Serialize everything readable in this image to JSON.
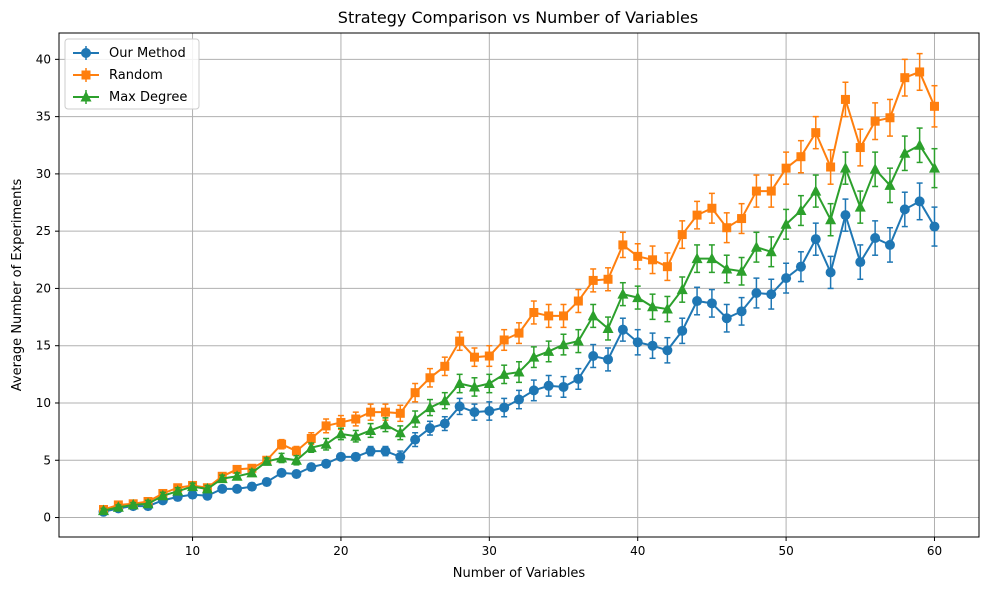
{
  "chart_data": {
    "type": "line",
    "title": "Strategy Comparison vs Number of Variables",
    "xlabel": "Number of Variables",
    "ylabel": "Average Number of Experiments",
    "xlim": [
      1,
      63
    ],
    "ylim": [
      -1.7,
      42.3
    ],
    "xticks": [
      10,
      20,
      30,
      40,
      50,
      60
    ],
    "yticks": [
      0,
      5,
      10,
      15,
      20,
      25,
      30,
      35,
      40
    ],
    "grid": true,
    "legend_position": "top-left",
    "x": [
      4,
      5,
      6,
      7,
      8,
      9,
      10,
      11,
      12,
      13,
      14,
      15,
      16,
      17,
      18,
      19,
      20,
      21,
      22,
      23,
      24,
      25,
      26,
      27,
      28,
      29,
      30,
      31,
      32,
      33,
      34,
      35,
      36,
      37,
      38,
      39,
      40,
      41,
      42,
      43,
      44,
      45,
      46,
      47,
      48,
      49,
      50,
      51,
      52,
      53,
      54,
      55,
      56,
      57,
      58,
      59,
      60
    ],
    "series": [
      {
        "name": "Our Method",
        "color": "#1f77b4",
        "marker": "circle",
        "values": [
          0.5,
          0.8,
          1.0,
          1.0,
          1.5,
          1.8,
          2.0,
          1.9,
          2.5,
          2.5,
          2.7,
          3.1,
          3.9,
          3.8,
          4.4,
          4.7,
          5.3,
          5.3,
          5.8,
          5.8,
          5.3,
          6.8,
          7.8,
          8.2,
          9.7,
          9.2,
          9.3,
          9.6,
          10.3,
          11.1,
          11.5,
          11.4,
          12.1,
          14.1,
          13.8,
          16.4,
          15.3,
          15.0,
          14.6,
          16.3,
          18.9,
          18.7,
          17.4,
          18.0,
          19.6,
          19.5,
          20.9,
          21.9,
          24.3,
          21.4,
          26.4,
          22.3,
          24.4,
          23.8,
          26.9,
          27.6,
          25.4
        ],
        "errors": [
          0.2,
          0.2,
          0.2,
          0.3,
          0.3,
          0.3,
          0.3,
          0.3,
          0.3,
          0.3,
          0.3,
          0.3,
          0.3,
          0.3,
          0.3,
          0.3,
          0.3,
          0.3,
          0.4,
          0.4,
          0.5,
          0.6,
          0.6,
          0.6,
          0.7,
          0.7,
          0.8,
          0.8,
          0.8,
          0.9,
          0.9,
          0.9,
          0.9,
          1.0,
          1.0,
          1.0,
          1.1,
          1.1,
          1.1,
          1.1,
          1.2,
          1.2,
          1.2,
          1.2,
          1.3,
          1.3,
          1.3,
          1.3,
          1.4,
          1.4,
          1.4,
          1.5,
          1.5,
          1.5,
          1.5,
          1.6,
          1.7
        ]
      },
      {
        "name": "Random",
        "color": "#ff7f0e",
        "marker": "square",
        "values": [
          0.7,
          1.1,
          1.2,
          1.4,
          2.1,
          2.6,
          2.8,
          2.6,
          3.6,
          4.2,
          4.3,
          5.0,
          6.4,
          5.8,
          6.9,
          8.0,
          8.3,
          8.6,
          9.2,
          9.2,
          9.1,
          10.9,
          12.2,
          13.2,
          15.4,
          14.0,
          14.1,
          15.5,
          16.1,
          17.9,
          17.6,
          17.6,
          18.9,
          20.7,
          20.8,
          23.8,
          22.8,
          22.5,
          21.9,
          24.7,
          26.4,
          27.0,
          25.3,
          26.1,
          28.5,
          28.5,
          30.5,
          31.5,
          33.6,
          30.6,
          36.5,
          32.3,
          34.6,
          34.9,
          38.4,
          38.9,
          35.9
        ],
        "errors": [
          0.2,
          0.2,
          0.2,
          0.3,
          0.3,
          0.3,
          0.3,
          0.3,
          0.3,
          0.3,
          0.3,
          0.3,
          0.4,
          0.4,
          0.5,
          0.6,
          0.6,
          0.6,
          0.7,
          0.7,
          0.7,
          0.8,
          0.8,
          0.8,
          0.8,
          0.8,
          0.9,
          0.9,
          0.9,
          1.0,
          1.0,
          1.0,
          1.0,
          1.0,
          1.0,
          1.1,
          1.1,
          1.2,
          1.2,
          1.2,
          1.2,
          1.3,
          1.3,
          1.3,
          1.4,
          1.4,
          1.4,
          1.4,
          1.4,
          1.5,
          1.5,
          1.6,
          1.6,
          1.6,
          1.6,
          1.6,
          1.8
        ]
      },
      {
        "name": "Max Degree",
        "color": "#2ca02c",
        "marker": "triangle",
        "values": [
          0.6,
          0.9,
          1.1,
          1.2,
          1.9,
          2.3,
          2.7,
          2.5,
          3.4,
          3.6,
          3.9,
          4.9,
          5.2,
          5.0,
          6.1,
          6.4,
          7.3,
          7.1,
          7.6,
          8.1,
          7.4,
          8.6,
          9.6,
          10.2,
          11.7,
          11.4,
          11.7,
          12.5,
          12.7,
          14.0,
          14.5,
          15.1,
          15.4,
          17.6,
          16.5,
          19.5,
          19.2,
          18.4,
          18.2,
          19.9,
          22.6,
          22.6,
          21.7,
          21.5,
          23.6,
          23.2,
          25.6,
          26.8,
          28.5,
          26.0,
          30.5,
          27.1,
          30.4,
          29.0,
          31.8,
          32.5,
          30.5
        ],
        "errors": [
          0.2,
          0.2,
          0.2,
          0.3,
          0.3,
          0.3,
          0.3,
          0.3,
          0.3,
          0.3,
          0.3,
          0.3,
          0.4,
          0.4,
          0.4,
          0.5,
          0.5,
          0.5,
          0.6,
          0.6,
          0.6,
          0.7,
          0.7,
          0.7,
          0.8,
          0.8,
          0.8,
          0.8,
          0.9,
          0.9,
          0.9,
          0.9,
          1.0,
          1.0,
          1.0,
          1.0,
          1.0,
          1.1,
          1.1,
          1.1,
          1.2,
          1.2,
          1.2,
          1.2,
          1.3,
          1.3,
          1.3,
          1.3,
          1.4,
          1.4,
          1.4,
          1.4,
          1.5,
          1.5,
          1.5,
          1.5,
          1.7
        ]
      }
    ]
  }
}
